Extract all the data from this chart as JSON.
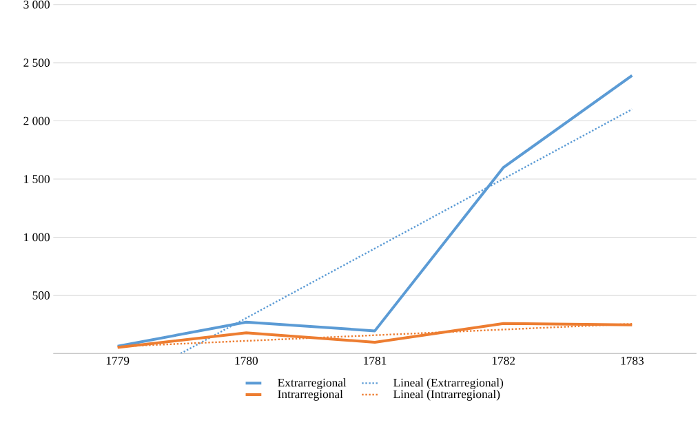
{
  "chart_data": {
    "type": "line",
    "x": [
      1779,
      1780,
      1781,
      1782,
      1783
    ],
    "xlim": [
      1778.5,
      1783.5
    ],
    "xticks": [
      1779,
      1780,
      1781,
      1782,
      1783
    ],
    "ylim": [
      0,
      3000
    ],
    "yticks": [
      {
        "value": 0,
        "label": null
      },
      {
        "value": 500,
        "label": "500"
      },
      {
        "value": 1000,
        "label": "1 000"
      },
      {
        "value": 1500,
        "label": "1 500"
      },
      {
        "value": 2000,
        "label": "2 000"
      },
      {
        "value": 2500,
        "label": "2 500"
      },
      {
        "value": 3000,
        "label": "3 000"
      }
    ],
    "grid": "y",
    "legend": "bottom",
    "marker": "none",
    "series": [
      {
        "name": "Extrarregional",
        "color": "#5b9bd5",
        "values": [
          63,
          270,
          195,
          1600,
          2390
        ]
      },
      {
        "name": "Lineal (Extrarregional)",
        "color": "#5b9bd5",
        "line_style": "dotted",
        "x": [
          1779.49,
          1783
        ],
        "values": [
          0,
          2100
        ]
      },
      {
        "name": "Intrarregional",
        "color": "#ed7d31",
        "values": [
          52,
          178,
          97,
          258,
          246
        ]
      },
      {
        "name": "Lineal (Intrarregional)",
        "color": "#ed7d31",
        "line_style": "dotted",
        "x": [
          1779,
          1783
        ],
        "values": [
          60,
          255
        ]
      }
    ]
  }
}
